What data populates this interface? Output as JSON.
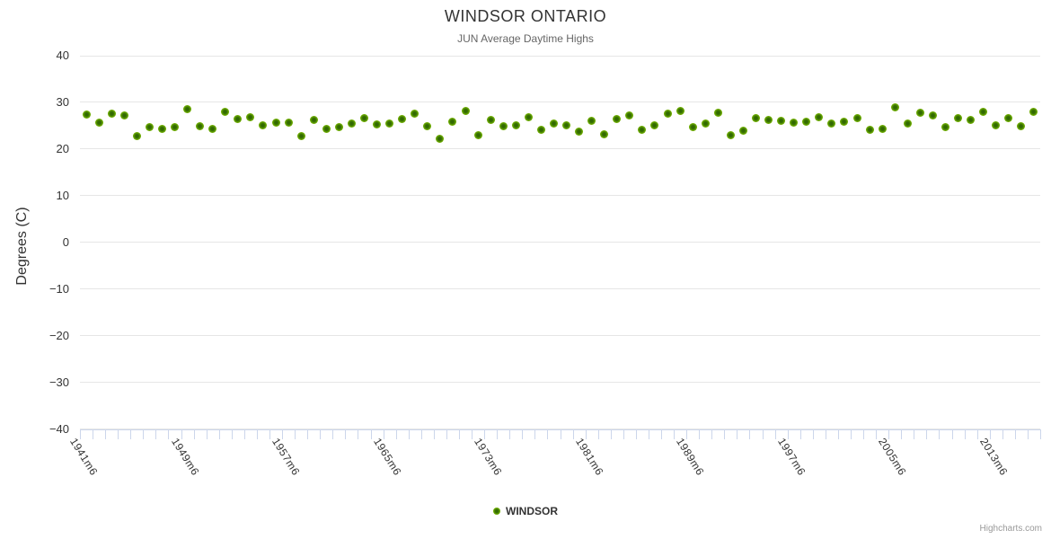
{
  "chart": {
    "title": "WINDSOR ONTARIO",
    "subtitle": "JUN Average Daytime Highs",
    "y_axis_title": "Degrees (C)",
    "legend_label": "WINDSOR",
    "credits": "Highcharts.com"
  },
  "colors": {
    "point_outer": "#85c303",
    "point_inner": "#2f6502",
    "gridline": "#e6e6e6",
    "axis_line": "#ccd6eb",
    "title_text": "#333333",
    "subtitle_text": "#666666",
    "credits_text": "#999999"
  },
  "chart_data": {
    "type": "scatter",
    "title": "WINDSOR ONTARIO",
    "subtitle": "JUN Average Daytime Highs",
    "ylabel": "Degrees (C)",
    "ylim": [
      -40,
      40
    ],
    "y_ticks": [
      40,
      30,
      20,
      10,
      0,
      -10,
      -20,
      -30,
      -40
    ],
    "grid": true,
    "legend_position": "bottom-center",
    "x_start_year": 1941,
    "x_suffix": "m6",
    "x_tick_label_interval": 8,
    "x_tick_labels": [
      "1941m6",
      "1949m6",
      "1957m6",
      "1965m6",
      "1973m6",
      "1981m6",
      "1989m6",
      "1997m6",
      "2005m6",
      "2013m6"
    ],
    "series": [
      {
        "name": "WINDSOR",
        "x": [
          1941,
          1942,
          1943,
          1944,
          1945,
          1946,
          1947,
          1948,
          1949,
          1950,
          1951,
          1952,
          1953,
          1954,
          1955,
          1956,
          1957,
          1958,
          1959,
          1960,
          1961,
          1962,
          1963,
          1964,
          1965,
          1966,
          1967,
          1968,
          1969,
          1970,
          1971,
          1972,
          1973,
          1974,
          1975,
          1976,
          1977,
          1978,
          1979,
          1980,
          1981,
          1982,
          1983,
          1984,
          1985,
          1986,
          1987,
          1988,
          1989,
          1990,
          1991,
          1992,
          1993,
          1994,
          1995,
          1996,
          1997,
          1998,
          1999,
          2000,
          2001,
          2002,
          2003,
          2004,
          2005,
          2006,
          2007,
          2008,
          2009,
          2010,
          2011,
          2012,
          2013,
          2014,
          2015,
          2016
        ],
        "values": [
          27.3,
          25.6,
          27.6,
          27.2,
          22.7,
          24.7,
          24.3,
          24.6,
          28.6,
          24.9,
          24.3,
          28.0,
          26.4,
          26.8,
          25.1,
          25.6,
          25.6,
          22.8,
          26.3,
          24.3,
          24.6,
          25.5,
          26.7,
          25.3,
          25.4,
          26.4,
          27.6,
          24.8,
          22.1,
          25.8,
          28.1,
          23.0,
          26.3,
          24.8,
          25.1,
          26.9,
          24.1,
          25.5,
          25.0,
          23.8,
          26.0,
          23.2,
          26.4,
          27.1,
          24.1,
          25.0,
          27.5,
          28.1,
          24.6,
          25.5,
          27.7,
          23.0,
          24.0,
          26.6,
          26.3,
          26.0,
          25.6,
          25.8,
          26.9,
          25.5,
          25.9,
          26.7,
          24.1,
          24.4,
          28.9,
          25.5,
          27.7,
          27.1,
          24.6,
          26.7,
          26.3,
          27.9,
          25.1,
          26.7,
          24.8,
          27.9
        ]
      }
    ]
  }
}
